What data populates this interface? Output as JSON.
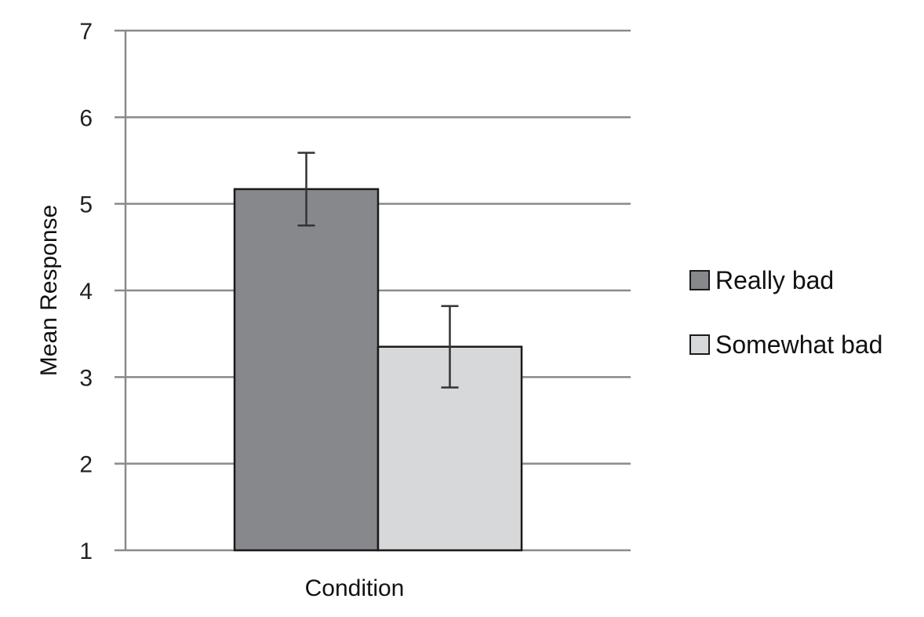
{
  "chart_data": {
    "type": "bar",
    "title": "",
    "xlabel": "Condition",
    "ylabel": "Mean Response",
    "categories": [
      "Condition"
    ],
    "ylim": [
      1,
      7
    ],
    "yticks": [
      "1",
      "2",
      "3",
      "4",
      "5",
      "6",
      "7"
    ],
    "grid": true,
    "legend_position": "right",
    "series": [
      {
        "name": "Really bad",
        "values": [
          5.17
        ],
        "error": [
          0.42
        ],
        "color": "#87888c"
      },
      {
        "name": "Somewhat bad",
        "values": [
          3.35
        ],
        "error": [
          0.47
        ],
        "color": "#d7d8da"
      }
    ]
  }
}
